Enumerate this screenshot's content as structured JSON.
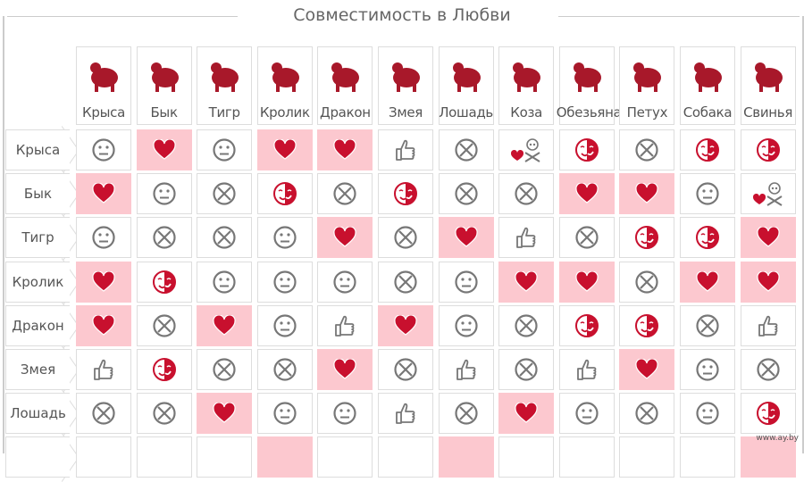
{
  "title": "Совместимость в Любви",
  "columns": [
    "Крыса",
    "Бык",
    "Тигр",
    "Кролик",
    "Дракон",
    "Змея",
    "Лошадь",
    "Коза",
    "Обезьяна",
    "Петух",
    "Собака",
    "Свинья"
  ],
  "legend": {
    "N": "neutral-face-icon",
    "H": "heart-icon",
    "X": "cross-circle-icon",
    "T": "thumbs-up-icon",
    "M": "half-mask-icon",
    "S": "heart-skull-icon"
  },
  "colors": {
    "accent": "#c8102e",
    "highlight": "#fcc8cf",
    "gray": "#777777"
  },
  "rows": [
    {
      "label": "Крыса",
      "cells": [
        "N",
        "H",
        "N",
        "H",
        "H",
        "T",
        "X",
        "S",
        "M",
        "X",
        "M",
        "M"
      ]
    },
    {
      "label": "Бык",
      "cells": [
        "H",
        "N",
        "X",
        "M",
        "X",
        "M",
        "X",
        "X",
        "H",
        "H",
        "N",
        "S"
      ]
    },
    {
      "label": "Тигр",
      "cells": [
        "N",
        "X",
        "X",
        "N",
        "H",
        "X",
        "H",
        "T",
        "X",
        "M",
        "M",
        "H"
      ]
    },
    {
      "label": "Кролик",
      "cells": [
        "H",
        "M",
        "N",
        "N",
        "N",
        "X",
        "N",
        "H",
        "H",
        "X",
        "H",
        "H"
      ]
    },
    {
      "label": "Дракон",
      "cells": [
        "H",
        "X",
        "H",
        "N",
        "T",
        "H",
        "N",
        "X",
        "M",
        "M",
        "X",
        "T"
      ]
    },
    {
      "label": "Змея",
      "cells": [
        "T",
        "M",
        "X",
        "X",
        "H",
        "X",
        "T",
        "X",
        "T",
        "H",
        "N",
        "X"
      ]
    },
    {
      "label": "Лошадь",
      "cells": [
        "X",
        "X",
        "H",
        "N",
        "N",
        "T",
        "X",
        "H",
        "N",
        "X",
        "N",
        "M"
      ]
    }
  ],
  "watermark": "www.ay.by"
}
